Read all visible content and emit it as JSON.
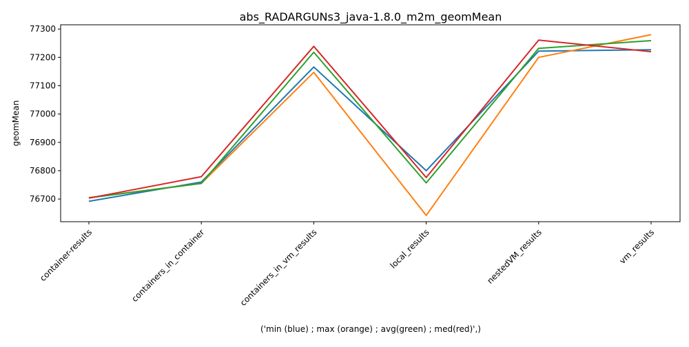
{
  "chart_data": {
    "type": "line",
    "title": "abs_RADARGUNs3_java-1.8.0_m2m_geomMean",
    "xlabel": "('min (blue) ; max (orange) ; avg(green) ; med(red)',)",
    "ylabel": "geomMean",
    "categories": [
      "container-results",
      "containers_in_container",
      "containers_in_vm_results",
      "local_results",
      "nestedVM_results",
      "vm_results"
    ],
    "ylim": [
      76620,
      77315
    ],
    "yticks": [
      76700,
      76800,
      76900,
      77000,
      77100,
      77200,
      77300
    ],
    "grid": false,
    "series": [
      {
        "color": "#1f77b4",
        "values": [
          76692,
          76760,
          77166,
          76800,
          77222,
          77227
        ]
      },
      {
        "color": "#ff7f0e",
        "values": [
          76705,
          76755,
          77147,
          76642,
          77200,
          77280
        ]
      },
      {
        "color": "#2ca02c",
        "values": [
          76704,
          76755,
          77218,
          76757,
          77232,
          77259
        ]
      },
      {
        "color": "#d62728",
        "values": [
          76703,
          76779,
          77239,
          76776,
          77261,
          77220
        ]
      }
    ]
  }
}
